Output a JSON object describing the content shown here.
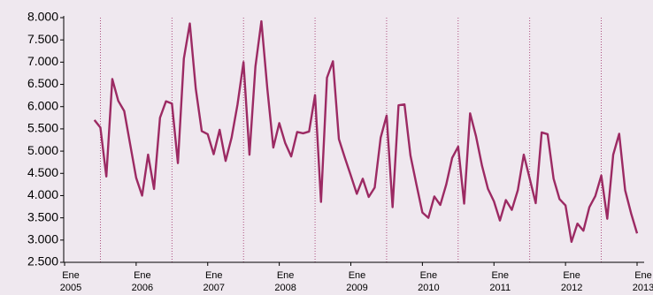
{
  "chart_data": {
    "type": "line",
    "categories": [
      "Ene 2005",
      null,
      null,
      null,
      null,
      null,
      null,
      null,
      null,
      null,
      null,
      null,
      "Ene 2006",
      null,
      null,
      null,
      null,
      null,
      null,
      null,
      null,
      null,
      null,
      null,
      "Ene 2007",
      null,
      null,
      null,
      null,
      null,
      null,
      null,
      null,
      null,
      null,
      null,
      "Ene 2008",
      null,
      null,
      null,
      null,
      null,
      null,
      null,
      null,
      null,
      null,
      null,
      "Ene 2009",
      null,
      null,
      null,
      null,
      null,
      null,
      null,
      null,
      null,
      null,
      null,
      "Ene 2010",
      null,
      null,
      null,
      null,
      null,
      null,
      null,
      null,
      null,
      null,
      null,
      "Ene 2011",
      null,
      null,
      null,
      null,
      null,
      null,
      null,
      null,
      null,
      null,
      null,
      "Ene 2012",
      null,
      null,
      null,
      null,
      null,
      null,
      null,
      null,
      null,
      null,
      null,
      "Ene 2013"
    ],
    "series": [
      {
        "color": "#9c2a63",
        "values": [
          null,
          null,
          null,
          null,
          null,
          5700,
          5530,
          4430,
          6620,
          6130,
          5900,
          5150,
          4400,
          4000,
          4920,
          4150,
          5750,
          6120,
          6070,
          4730,
          7080,
          7870,
          6400,
          5450,
          5380,
          4930,
          5480,
          4780,
          5300,
          6050,
          7000,
          4920,
          6900,
          7920,
          6400,
          5080,
          5630,
          5180,
          4880,
          5430,
          5400,
          5440,
          6260,
          3860,
          6650,
          7020,
          5270,
          4850,
          4450,
          4040,
          4380,
          3970,
          4180,
          5300,
          5800,
          3740,
          6030,
          6050,
          4900,
          4250,
          3620,
          3500,
          3980,
          3790,
          4250,
          4850,
          5100,
          3820,
          5850,
          5330,
          4670,
          4150,
          3870,
          3440,
          3900,
          3680,
          4120,
          4920,
          4380,
          3830,
          5420,
          5380,
          4380,
          3920,
          3780,
          2960,
          3370,
          3210,
          3740,
          3990,
          4450,
          3480,
          4920,
          5390,
          4120,
          3600,
          3150
        ]
      }
    ],
    "ylim": [
      2500,
      8000
    ],
    "yticks": [
      {
        "value": 2500,
        "label": "2.500"
      },
      {
        "value": 3000,
        "label": "3.000"
      },
      {
        "value": 3500,
        "label": "3.500"
      },
      {
        "value": 4000,
        "label": "4.000"
      },
      {
        "value": 4500,
        "label": "4.500"
      },
      {
        "value": 5000,
        "label": "5.000"
      },
      {
        "value": 5500,
        "label": "5.500"
      },
      {
        "value": 6000,
        "label": "6.000"
      },
      {
        "value": 6500,
        "label": "6.500"
      },
      {
        "value": 7000,
        "label": "7.000"
      },
      {
        "value": 7500,
        "label": "7.500"
      },
      {
        "value": 8000,
        "label": "8.000"
      }
    ],
    "grid": false
  }
}
